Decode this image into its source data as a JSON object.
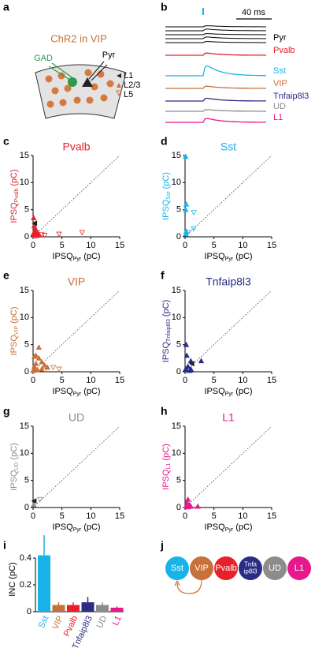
{
  "panel_labels": [
    "a",
    "b",
    "c",
    "d",
    "e",
    "f",
    "g",
    "h",
    "i",
    "j"
  ],
  "schematic": {
    "title": "ChR2 in VIP",
    "gad": "GAD",
    "pyr": "Pyr",
    "legend": [
      "L1",
      "L2/3",
      "L5"
    ]
  },
  "traces": {
    "scale": "40 ms",
    "labels": [
      "Pyr",
      "Pvalb",
      "Sst",
      "VIP",
      "Tnfaip8l3",
      "UD",
      "L1"
    ],
    "colors": [
      "#000000",
      "#e8202a",
      "#18b4e8",
      "#c8703a",
      "#2b2c87",
      "#8c8c8c",
      "#e6188c"
    ]
  },
  "diagram": {
    "nodes": [
      {
        "lines": [
          "Sst"
        ],
        "color": "#18b4e8"
      },
      {
        "lines": [
          "VIP"
        ],
        "color": "#c8703a"
      },
      {
        "lines": [
          "Pvalb"
        ],
        "color": "#e8202a"
      },
      {
        "lines": [
          "Tnfa",
          "ip8l3"
        ],
        "color": "#2b2c87"
      },
      {
        "lines": [
          "UD"
        ],
        "color": "#8c8c8c"
      },
      {
        "lines": [
          "L1"
        ],
        "color": "#e6188c"
      }
    ]
  },
  "chart_data": [
    {
      "type": "scatter",
      "title": "Pvalb",
      "color": "#e8202a",
      "xlabel": [
        "IPSQ",
        "Pyr",
        "(pC)"
      ],
      "ylabel": [
        "IPSQ",
        "Pvalb",
        "(pC)"
      ],
      "xlim": [
        0,
        15
      ],
      "ylim": [
        0,
        15
      ],
      "xticks": [
        0,
        5,
        10,
        15
      ],
      "yticks": [
        0,
        5,
        10,
        15
      ],
      "diagonal": true,
      "series": [
        {
          "marker": "up",
          "x": [
            0.1,
            0.2,
            0.3,
            0.5,
            0.2,
            0.8,
            1,
            0.4,
            0,
            0.6
          ],
          "y": [
            3.5,
            2,
            1,
            0.5,
            0.3,
            0.8,
            0.3,
            1.5,
            0.5,
            0.2
          ]
        },
        {
          "marker": "down",
          "x": [
            4.5,
            8.5,
            1.5,
            2,
            0.5
          ],
          "y": [
            0.5,
            0.8,
            0.4,
            0.3,
            0.2
          ]
        },
        {
          "marker": "left",
          "x": [
            0.3
          ],
          "y": [
            2.5
          ]
        }
      ]
    },
    {
      "type": "scatter",
      "title": "Sst",
      "color": "#18b4e8",
      "xlabel": [
        "IPSQ",
        "Pyr",
        "(pC)"
      ],
      "ylabel": [
        "IPSQ",
        "Sst",
        "(pC)"
      ],
      "xlim": [
        0,
        15
      ],
      "ylim": [
        0,
        15
      ],
      "xticks": [
        0,
        5,
        10,
        15
      ],
      "yticks": [
        0,
        5,
        10,
        15
      ],
      "diagonal": true,
      "series": [
        {
          "marker": "up",
          "x": [
            0.1,
            0.2,
            0.1,
            0.2,
            0.1
          ],
          "y": [
            14.8,
            6,
            5,
            1,
            0.5
          ]
        },
        {
          "marker": "down",
          "x": [
            1.5,
            1.5,
            0.5
          ],
          "y": [
            4.5,
            1.5,
            0.8
          ]
        }
      ]
    },
    {
      "type": "scatter",
      "title": "VIP",
      "color": "#c8703a",
      "xlabel": [
        "IPSQ",
        "Pyr",
        "(pC)"
      ],
      "ylabel": [
        "IPSQ",
        "VIP",
        "(pC)"
      ],
      "xlim": [
        0,
        15
      ],
      "ylim": [
        0,
        15
      ],
      "xticks": [
        0,
        5,
        10,
        15
      ],
      "yticks": [
        0,
        5,
        10,
        15
      ],
      "diagonal": true,
      "series": [
        {
          "marker": "up",
          "x": [
            1,
            0.5,
            1,
            1.5,
            2,
            0.5,
            0.2,
            0.3,
            0.8,
            1.5,
            2.5,
            0.2,
            0
          ],
          "y": [
            4.5,
            3,
            2.5,
            1.8,
            1.2,
            1.5,
            1,
            0.5,
            0.3,
            0.5,
            0.8,
            2.8,
            0.2
          ]
        },
        {
          "marker": "down",
          "x": [
            4.5,
            2,
            3.5
          ],
          "y": [
            0.5,
            0.3,
            0.8
          ]
        }
      ]
    },
    {
      "type": "scatter",
      "title": "Tnfaip8l3",
      "color": "#2b2c87",
      "xlabel": [
        "IPSQ",
        "Pyr",
        "(pC)"
      ],
      "ylabel": [
        "IPSQ",
        "Tnfaip8l3",
        "(pC)"
      ],
      "xlim": [
        0,
        15
      ],
      "ylim": [
        0,
        15
      ],
      "xticks": [
        0,
        5,
        10,
        15
      ],
      "yticks": [
        0,
        5,
        10,
        15
      ],
      "diagonal": true,
      "series": [
        {
          "marker": "up",
          "x": [
            0.2,
            0.3,
            1,
            2.8,
            0.5,
            1,
            0.3,
            0.8,
            0.1
          ],
          "y": [
            5,
            3,
            2,
            2,
            1,
            0.5,
            0.3,
            0.2,
            0.5
          ]
        },
        {
          "marker": "left",
          "x": [
            1.2
          ],
          "y": [
            1.5
          ]
        }
      ]
    },
    {
      "type": "scatter",
      "title": "UD",
      "color": "#8c8c8c",
      "xlabel": [
        "IPSQ",
        "Pyr",
        "(pC)"
      ],
      "ylabel": [
        "IPSQ",
        "UD",
        "(pC)"
      ],
      "xlim": [
        0,
        15
      ],
      "ylim": [
        0,
        15
      ],
      "xticks": [
        0,
        5,
        10,
        15
      ],
      "yticks": [
        0,
        5,
        10,
        15
      ],
      "diagonal": true,
      "series": [
        {
          "marker": "up",
          "x": [
            0.1
          ],
          "y": [
            0.5
          ]
        },
        {
          "marker": "down",
          "x": [
            1.2
          ],
          "y": [
            1.5
          ]
        },
        {
          "marker": "left",
          "x": [
            0.2
          ],
          "y": [
            1.2
          ]
        }
      ]
    },
    {
      "type": "scatter",
      "title": "L1",
      "color": "#e6188c",
      "xlabel": [
        "IPSQ",
        "Pyr",
        "(pC)"
      ],
      "ylabel": [
        "IPSQ",
        "L1",
        "(pC)"
      ],
      "xlim": [
        0,
        15
      ],
      "ylim": [
        0,
        15
      ],
      "xticks": [
        0,
        5,
        10,
        15
      ],
      "yticks": [
        0,
        5,
        10,
        15
      ],
      "diagonal": true,
      "series": [
        {
          "marker": "up",
          "x": [
            0.5,
            0.3,
            0.8,
            0.2,
            1,
            0.5,
            2.2
          ],
          "y": [
            1.5,
            1,
            0.5,
            0.3,
            0.2,
            0.1,
            0.2
          ]
        }
      ]
    },
    {
      "type": "bar",
      "ylabel": "INC (pC)",
      "ylim": [
        0,
        0.6
      ],
      "yticks": [
        0,
        0.2,
        0.4
      ],
      "categories": [
        "Sst",
        "VIP",
        "Pvalb",
        "Tnfaip8l3",
        "UD",
        "L1"
      ],
      "values": [
        0.42,
        0.05,
        0.05,
        0.07,
        0.05,
        0.03
      ],
      "errors": [
        0.15,
        0.02,
        0.02,
        0.04,
        0.02,
        0.01
      ],
      "colors": [
        "#18b4e8",
        "#c8703a",
        "#e8202a",
        "#2b2c87",
        "#8c8c8c",
        "#e6188c"
      ]
    }
  ]
}
